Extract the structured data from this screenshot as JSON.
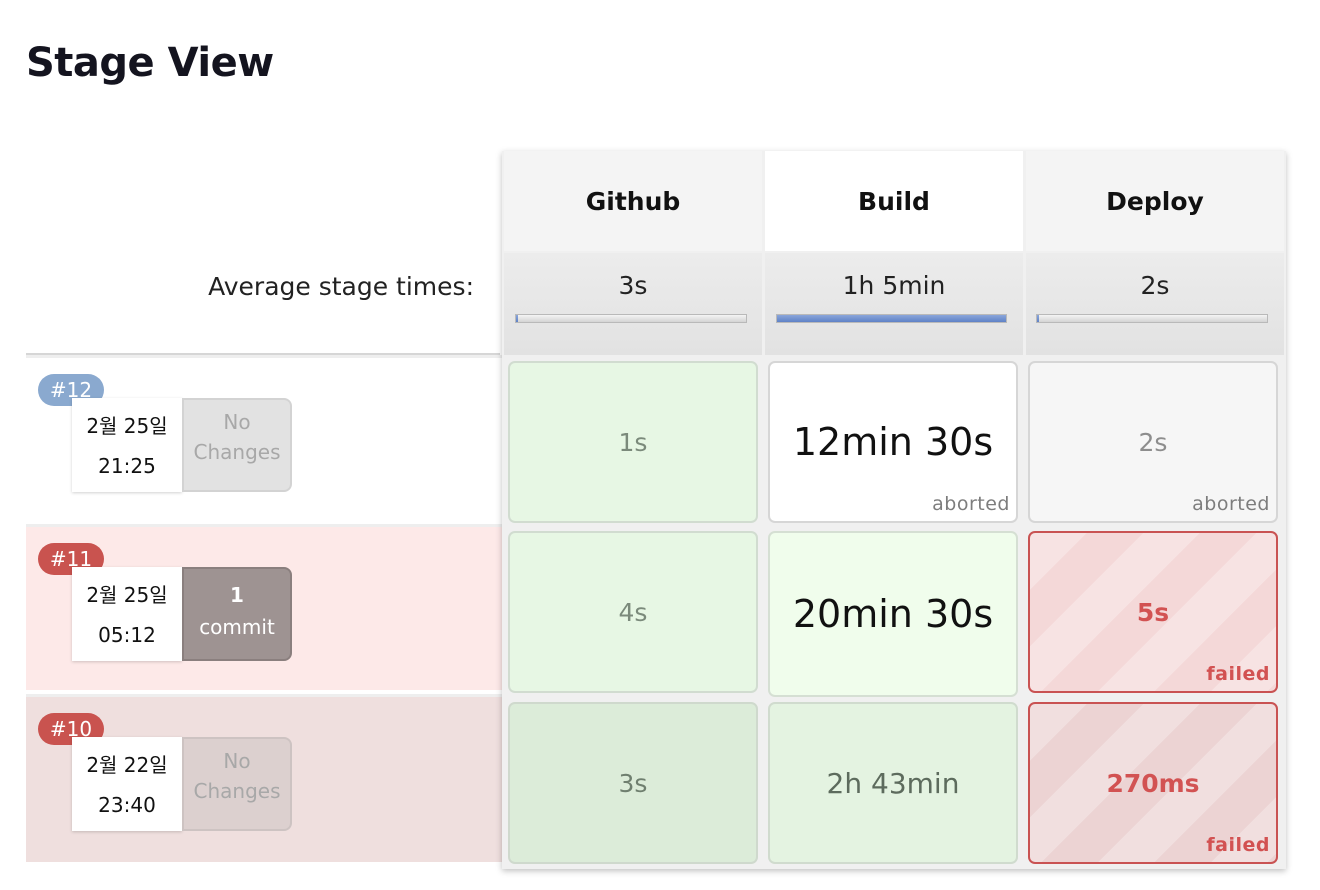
{
  "page": {
    "title": "Stage View"
  },
  "stages": {
    "headers": [
      "Github",
      "Build",
      "Deploy"
    ],
    "average_label": "Average stage times:",
    "average_times": [
      "3s",
      "1h 5min",
      "2s"
    ],
    "average_fraction": [
      0.01,
      1.0,
      0.01
    ]
  },
  "runs": [
    {
      "number": "#12",
      "date": "2월 25일",
      "time": "21:25",
      "changes_line1": "No",
      "changes_line2": "Changes",
      "stages": [
        {
          "time": "1s",
          "status": ""
        },
        {
          "time": "12min 30s",
          "status": "aborted"
        },
        {
          "time": "2s",
          "status": "aborted"
        }
      ]
    },
    {
      "number": "#11",
      "date": "2월 25일",
      "time": "05:12",
      "changes_line1": "1",
      "changes_line2": "commit",
      "stages": [
        {
          "time": "4s",
          "status": ""
        },
        {
          "time": "20min 30s",
          "status": ""
        },
        {
          "time": "5s",
          "status": "failed"
        }
      ]
    },
    {
      "number": "#10",
      "date": "2월 22일",
      "time": "23:40",
      "changes_line1": "No",
      "changes_line2": "Changes",
      "stages": [
        {
          "time": "3s",
          "status": ""
        },
        {
          "time": "2h 43min",
          "status": ""
        },
        {
          "time": "270ms",
          "status": "failed"
        }
      ]
    }
  ],
  "colors": {
    "success": "#e7f7e4",
    "aborted": "#f6f6f6",
    "failed": "#f4d8d8",
    "badge_blue": "#8aa9cf",
    "badge_red": "#c9534f"
  }
}
